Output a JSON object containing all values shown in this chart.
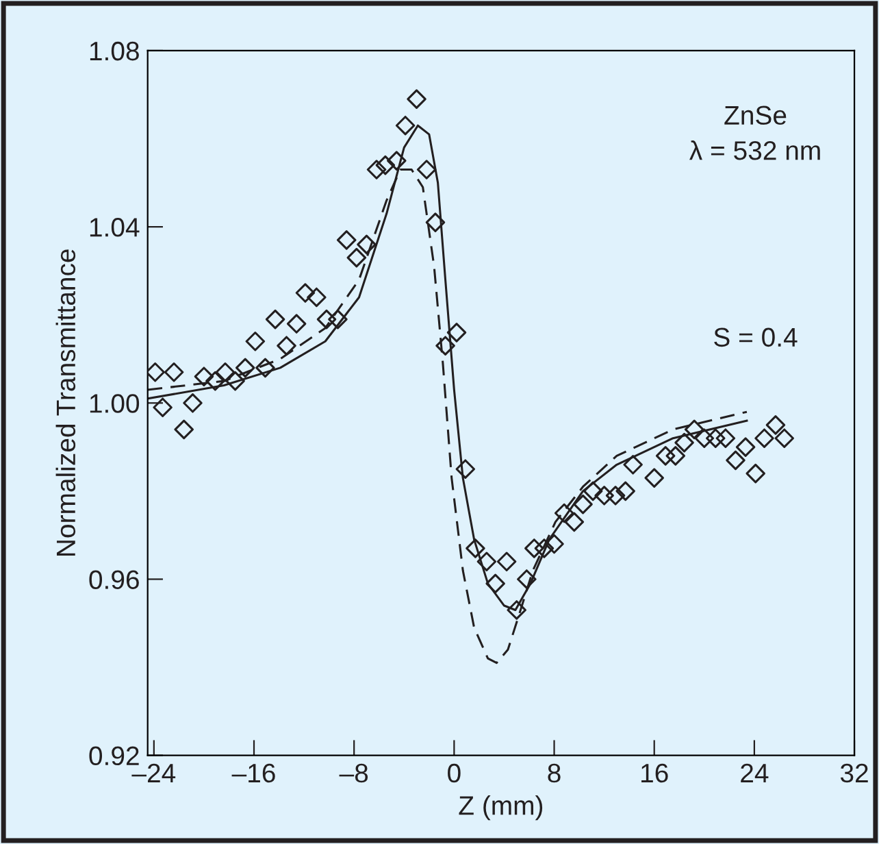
{
  "chart_data": {
    "type": "scatter",
    "xlabel": "Z (mm)",
    "ylabel": "Normalized Transmittance",
    "annotations": [
      "ZnSe",
      "λ = 532 nm",
      "S = 0.4"
    ],
    "xlim": [
      -24.5,
      32
    ],
    "ylim": [
      0.92,
      1.08
    ],
    "xticks": [
      {
        "value": -24,
        "label": "–24"
      },
      {
        "value": -16,
        "label": "–16"
      },
      {
        "value": -8,
        "label": "–8"
      },
      0,
      8,
      16,
      24,
      32
    ],
    "yticks": [
      {
        "value": 0.92,
        "label": "0.92"
      },
      {
        "value": 0.96,
        "label": "0.96"
      },
      {
        "value": 1.0,
        "label": "1.00"
      },
      {
        "value": 1.04,
        "label": "1.04"
      },
      {
        "value": 1.08,
        "label": "1.08"
      }
    ],
    "grid": false,
    "legend": false,
    "series": [
      {
        "marker": "diamond",
        "color": "#231f20",
        "x": [
          -23.9,
          -23.3,
          -22.4,
          -21.6,
          -20.9,
          -20.0,
          -19.1,
          -18.3,
          -17.5,
          -16.7,
          -15.9,
          -15.1,
          -14.3,
          -13.4,
          -12.6,
          -11.9,
          -11.0,
          -10.2,
          -9.3,
          -8.6,
          -7.8,
          -7.0,
          -6.2,
          -5.5,
          -4.6,
          -3.9,
          -3.0,
          -2.2,
          -1.5,
          -0.7,
          0.2,
          0.9,
          1.7,
          2.6,
          3.3,
          4.2,
          5.0,
          5.8,
          6.4,
          7.2,
          8.0,
          8.8,
          9.6,
          10.3,
          11.1,
          12.0,
          12.9,
          13.7,
          14.3,
          16.0,
          16.9,
          17.7,
          18.4,
          19.2,
          20.0,
          20.9,
          21.7,
          22.5,
          23.3,
          24.1,
          24.8,
          25.7,
          26.4
        ],
        "values": [
          1.007,
          0.999,
          1.007,
          0.994,
          1.0,
          1.006,
          1.005,
          1.007,
          1.005,
          1.008,
          1.014,
          1.008,
          1.019,
          1.013,
          1.018,
          1.025,
          1.024,
          1.019,
          1.019,
          1.037,
          1.033,
          1.036,
          1.053,
          1.054,
          1.055,
          1.063,
          1.069,
          1.053,
          1.041,
          1.013,
          1.016,
          0.985,
          0.967,
          0.964,
          0.959,
          0.964,
          0.953,
          0.96,
          0.967,
          0.967,
          0.968,
          0.975,
          0.973,
          0.977,
          0.98,
          0.979,
          0.979,
          0.98,
          0.986,
          0.983,
          0.988,
          0.988,
          0.991,
          0.994,
          0.992,
          0.992,
          0.992,
          0.987,
          0.99,
          0.984,
          0.992,
          0.995,
          0.992
        ]
      },
      {
        "type": "line",
        "line_style": "solid",
        "marker": "none",
        "color": "#231f20",
        "x": [
          -24.5,
          -18.4,
          -13.9,
          -10.3,
          -7.6,
          -5.4,
          -4.0,
          -2.9,
          -2.0,
          -1.3,
          -0.7,
          0,
          0.7,
          1.6,
          2.7,
          4.0,
          4.9,
          6.1,
          7.6,
          10.3,
          13.0,
          17.5,
          23.4
        ],
        "values": [
          1.001,
          1.004,
          1.008,
          1.014,
          1.024,
          1.043,
          1.058,
          1.063,
          1.061,
          1.05,
          1.028,
          1.003,
          0.983,
          0.969,
          0.959,
          0.954,
          0.953,
          0.959,
          0.969,
          0.98,
          0.986,
          0.992,
          0.996
        ]
      },
      {
        "type": "line",
        "line_style": "dashed",
        "marker": "none",
        "color": "#231f20",
        "x": [
          -24.5,
          -18.4,
          -13.9,
          -10.3,
          -7.6,
          -5.4,
          -4.3,
          -3.4,
          -2.5,
          -1.6,
          -0.9,
          -0.2,
          0.7,
          1.6,
          2.7,
          3.4,
          4.3,
          5.2,
          6.3,
          8.1,
          10.3,
          13.0,
          17.5,
          23.4
        ],
        "values": [
          1.003,
          1.005,
          1.01,
          1.017,
          1.028,
          1.046,
          1.053,
          1.053,
          1.049,
          1.031,
          1.009,
          0.983,
          0.962,
          0.949,
          0.942,
          0.941,
          0.944,
          0.952,
          0.962,
          0.973,
          0.981,
          0.988,
          0.994,
          0.998
        ]
      }
    ]
  }
}
